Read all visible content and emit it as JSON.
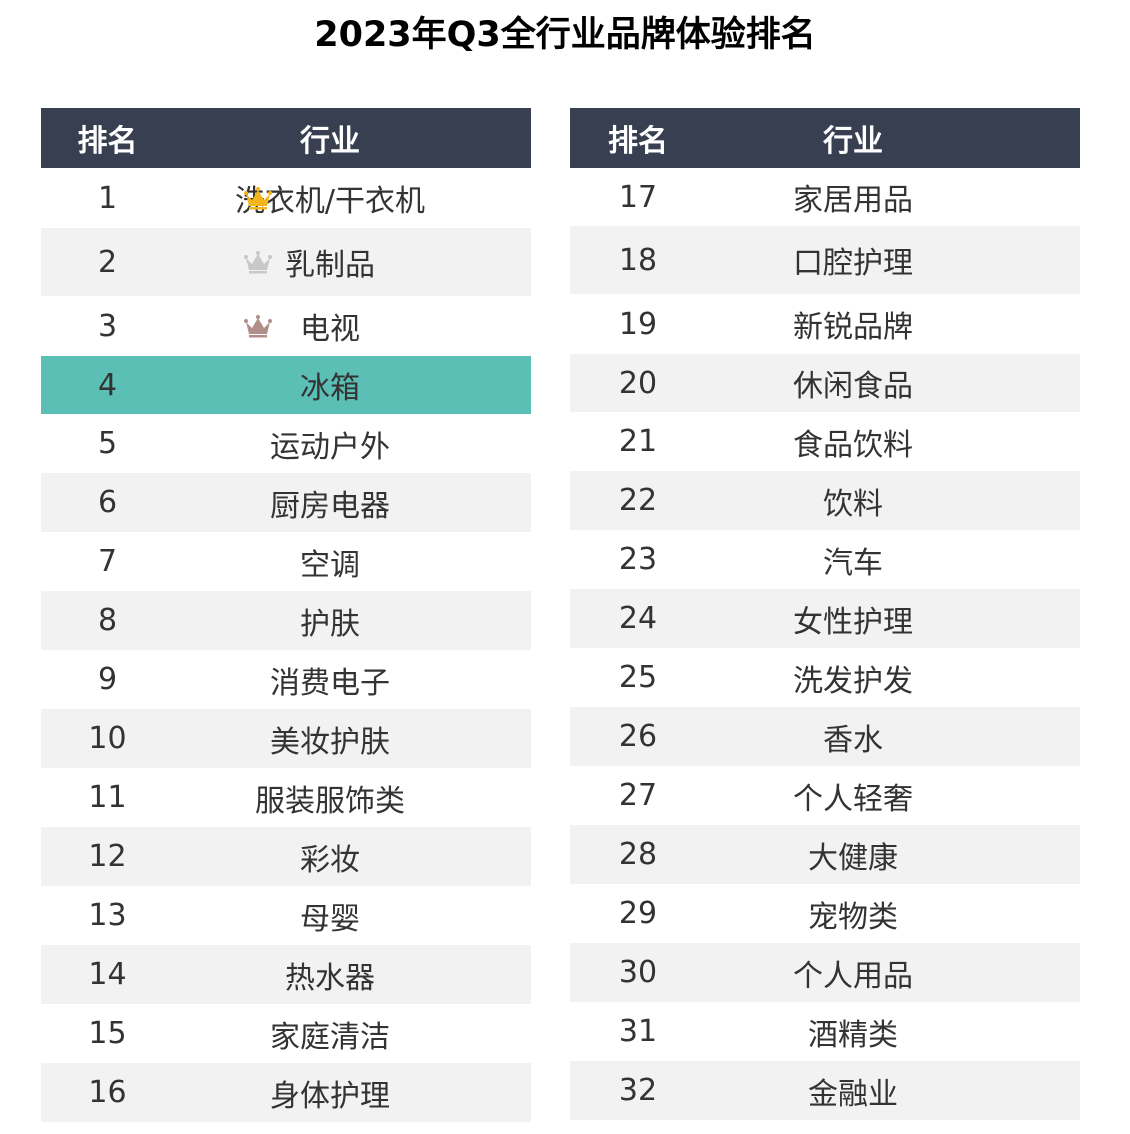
{
  "title": "2023年Q3全行业品牌体验排名",
  "colors": {
    "header_bg": "#373f50",
    "header_text": "#ffffff",
    "row_shade": "#f2f2f2",
    "highlight": "#5bbfb5",
    "crown_gold": "#f2b51c",
    "crown_silver": "#c8c8c8",
    "crown_bronze": "#b08f8a"
  },
  "headers": {
    "rank": "排名",
    "industry": "行业"
  },
  "chart_data": {
    "type": "table",
    "title": "2023年Q3全行业品牌体验排名",
    "columns": [
      "排名",
      "行业"
    ],
    "highlighted_rank": 4,
    "crowns": [
      {
        "rank": 1,
        "icon": "gold-crown-icon"
      },
      {
        "rank": 2,
        "icon": "silver-crown-icon"
      },
      {
        "rank": 3,
        "icon": "bronze-crown-icon"
      }
    ],
    "left": [
      {
        "rank": "1",
        "industry": "洗衣机/干衣机"
      },
      {
        "rank": "2",
        "industry": "乳制品"
      },
      {
        "rank": "3",
        "industry": "电视"
      },
      {
        "rank": "4",
        "industry": "冰箱"
      },
      {
        "rank": "5",
        "industry": "运动户外"
      },
      {
        "rank": "6",
        "industry": "厨房电器"
      },
      {
        "rank": "7",
        "industry": "空调"
      },
      {
        "rank": "8",
        "industry": "护肤"
      },
      {
        "rank": "9",
        "industry": "消费电子"
      },
      {
        "rank": "10",
        "industry": "美妆护肤"
      },
      {
        "rank": "11",
        "industry": "服装服饰类"
      },
      {
        "rank": "12",
        "industry": "彩妆"
      },
      {
        "rank": "13",
        "industry": "母婴"
      },
      {
        "rank": "14",
        "industry": "热水器"
      },
      {
        "rank": "15",
        "industry": "家庭清洁"
      },
      {
        "rank": "16",
        "industry": "身体护理"
      }
    ],
    "right": [
      {
        "rank": "17",
        "industry": "家居用品"
      },
      {
        "rank": "18",
        "industry": "口腔护理"
      },
      {
        "rank": "19",
        "industry": "新锐品牌"
      },
      {
        "rank": "20",
        "industry": "休闲食品"
      },
      {
        "rank": "21",
        "industry": "食品饮料"
      },
      {
        "rank": "22",
        "industry": "饮料"
      },
      {
        "rank": "23",
        "industry": "汽车"
      },
      {
        "rank": "24",
        "industry": "女性护理"
      },
      {
        "rank": "25",
        "industry": "洗发护发"
      },
      {
        "rank": "26",
        "industry": "香水"
      },
      {
        "rank": "27",
        "industry": "个人轻奢"
      },
      {
        "rank": "28",
        "industry": "大健康"
      },
      {
        "rank": "29",
        "industry": "宠物类"
      },
      {
        "rank": "30",
        "industry": "个人用品"
      },
      {
        "rank": "31",
        "industry": "酒精类"
      },
      {
        "rank": "32",
        "industry": "金融业"
      }
    ]
  }
}
